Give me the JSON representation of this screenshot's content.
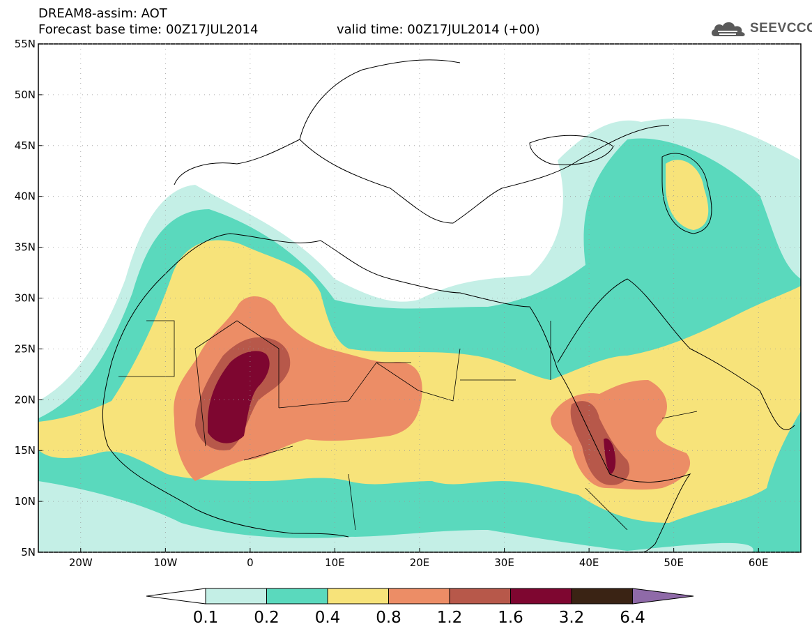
{
  "header": {
    "title": "DREAM8-assim: AOT",
    "base_time": "Forecast base time: 00Z17JUL2014",
    "valid_time": "valid time: 00Z17JUL2014 (+00)"
  },
  "logo": {
    "text": "SEEVCCC",
    "icon": "cloud-icon"
  },
  "map": {
    "lon_range": [
      -25,
      65
    ],
    "lat_range": [
      5,
      55
    ],
    "lon_ticks": [
      {
        "value": -20,
        "label": "20W"
      },
      {
        "value": -10,
        "label": "10W"
      },
      {
        "value": 0,
        "label": "0"
      },
      {
        "value": 10,
        "label": "10E"
      },
      {
        "value": 20,
        "label": "20E"
      },
      {
        "value": 30,
        "label": "30E"
      },
      {
        "value": 40,
        "label": "40E"
      },
      {
        "value": 50,
        "label": "50E"
      },
      {
        "value": 60,
        "label": "60E"
      }
    ],
    "lat_ticks": [
      {
        "value": 5,
        "label": "5N"
      },
      {
        "value": 10,
        "label": "10N"
      },
      {
        "value": 15,
        "label": "15N"
      },
      {
        "value": 20,
        "label": "20N"
      },
      {
        "value": 25,
        "label": "25N"
      },
      {
        "value": 30,
        "label": "30N"
      },
      {
        "value": 35,
        "label": "35N"
      },
      {
        "value": 40,
        "label": "40N"
      },
      {
        "value": 45,
        "label": "45N"
      },
      {
        "value": 50,
        "label": "50N"
      },
      {
        "value": 55,
        "label": "55N"
      }
    ],
    "grid": "dotted"
  },
  "colorbar": {
    "colors": [
      "#ffffff",
      "#c4efe6",
      "#5ad9bd",
      "#f7e37a",
      "#ec8d66",
      "#b7584a",
      "#7e0630",
      "#3a2314",
      "#8f6aa8"
    ],
    "labels": [
      "0.1",
      "0.2",
      "0.4",
      "0.8",
      "1.2",
      "1.6",
      "3.2",
      "6.4"
    ]
  }
}
